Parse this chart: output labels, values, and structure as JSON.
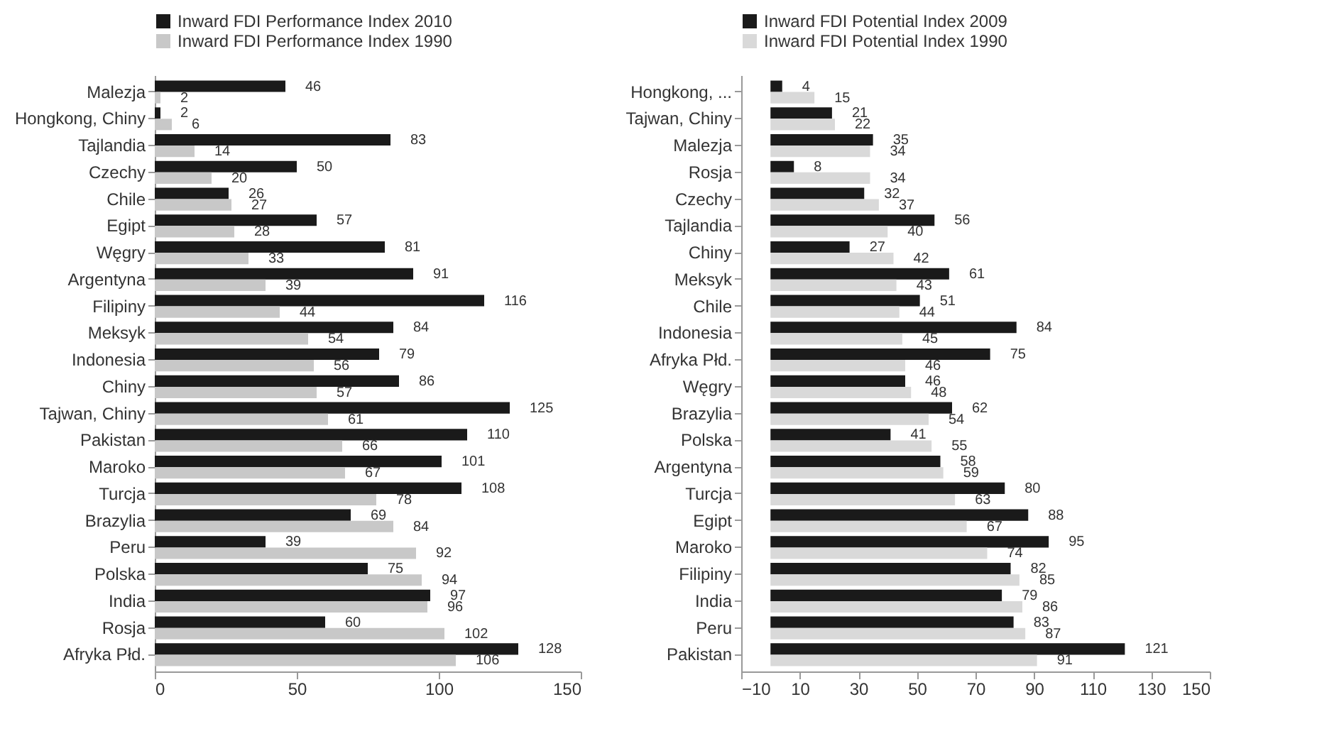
{
  "chart_data": [
    {
      "type": "bar",
      "orientation": "horizontal",
      "categories": [
        "Malezja",
        "Hongkong, Chiny",
        "Tajlandia",
        "Czechy",
        "Chile",
        "Egipt",
        "Węgry",
        "Argentyna",
        "Filipiny",
        "Meksyk",
        "Indonesia",
        "Chiny",
        "Tajwan, Chiny",
        "Pakistan",
        "Maroko",
        "Turcja",
        "Brazylia",
        "Peru",
        "Polska",
        "India",
        "Rosja",
        "Afryka Płd."
      ],
      "series": [
        {
          "name": "Inward FDI Performance Index 2010",
          "color": "#1a1a1a",
          "values": [
            46,
            2,
            83,
            50,
            26,
            57,
            81,
            91,
            116,
            84,
            79,
            86,
            125,
            110,
            101,
            108,
            69,
            39,
            75,
            97,
            60,
            128
          ]
        },
        {
          "name": "Inward FDI Performance Index 1990",
          "color": "#c8c8c8",
          "values": [
            2,
            6,
            14,
            20,
            27,
            28,
            33,
            39,
            44,
            54,
            56,
            57,
            61,
            66,
            67,
            78,
            84,
            92,
            94,
            96,
            102,
            106
          ]
        }
      ],
      "xlim": [
        0,
        150
      ],
      "xticks": [
        0,
        50,
        100,
        150
      ],
      "data_labels": true,
      "legend": "top",
      "grid": false
    },
    {
      "type": "bar",
      "orientation": "horizontal",
      "categories": [
        "Hongkong, ...",
        "Tajwan, Chiny",
        "Malezja",
        "Rosja",
        "Czechy",
        "Tajlandia",
        "Chiny",
        "Meksyk",
        "Chile",
        "Indonesia",
        "Afryka Płd.",
        "Węgry",
        "Brazylia",
        "Polska",
        "Argentyna",
        "Turcja",
        "Egipt",
        "Maroko",
        "Filipiny",
        "India",
        "Peru",
        "Pakistan"
      ],
      "series": [
        {
          "name": "Inward FDI Potential Index 2009",
          "color": "#1a1a1a",
          "values": [
            4,
            21,
            35,
            8,
            32,
            56,
            27,
            61,
            51,
            84,
            75,
            46,
            62,
            41,
            58,
            80,
            88,
            95,
            82,
            79,
            83,
            121
          ]
        },
        {
          "name": "Inward FDI Potential Index 1990",
          "color": "#d9d9d9",
          "values": [
            15,
            22,
            34,
            34,
            37,
            40,
            42,
            43,
            44,
            45,
            46,
            48,
            54,
            55,
            59,
            63,
            67,
            74,
            85,
            86,
            87,
            91
          ]
        }
      ],
      "xlim": [
        -10,
        150
      ],
      "xticks": [
        -10,
        10,
        30,
        50,
        70,
        90,
        110,
        130,
        150
      ],
      "data_labels": true,
      "legend": "top",
      "grid": false
    }
  ]
}
